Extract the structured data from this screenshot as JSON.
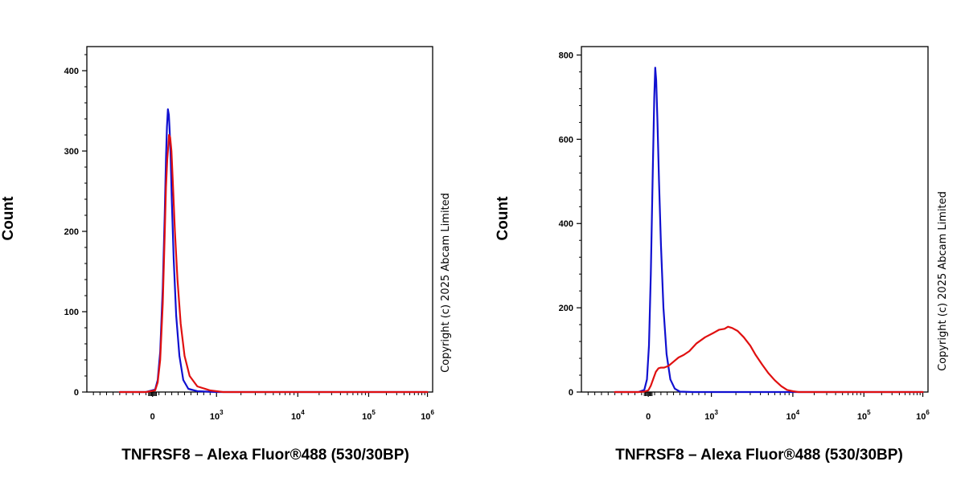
{
  "chart_data": [
    {
      "type": "line",
      "ylabel": "Count",
      "xlabel": "TNFRSF8 – Alexa Fluor®488 (530/30BP)",
      "watermark": "Copyright (c) 2025 Abcam Limited",
      "x_scale": "biexponential",
      "ylim": [
        0,
        430
      ],
      "y_ticks": [
        0,
        100,
        200,
        300,
        400
      ],
      "x_ticks": [
        {
          "value": 0,
          "base": "0",
          "exp": ""
        },
        {
          "value": 1000,
          "base": "10",
          "exp": "3"
        },
        {
          "value": 10000,
          "base": "10",
          "exp": "4"
        },
        {
          "value": 100000,
          "base": "10",
          "exp": "5"
        },
        {
          "value": 1000000,
          "base": "10",
          "exp": "6"
        }
      ],
      "series": [
        {
          "color": "#1010d0",
          "points": [
            [
              -500,
              0
            ],
            [
              -100,
              0
            ],
            [
              40,
              3
            ],
            [
              80,
              15
            ],
            [
              120,
              50
            ],
            [
              160,
              130
            ],
            [
              190,
              220
            ],
            [
              210,
              290
            ],
            [
              225,
              330
            ],
            [
              240,
              352
            ],
            [
              255,
              345
            ],
            [
              268,
              325
            ],
            [
              280,
              300
            ],
            [
              300,
              240
            ],
            [
              330,
              165
            ],
            [
              370,
              95
            ],
            [
              420,
              45
            ],
            [
              480,
              15
            ],
            [
              560,
              4
            ],
            [
              700,
              1
            ],
            [
              1000,
              0
            ],
            [
              10000,
              0
            ],
            [
              1000000,
              0
            ]
          ]
        },
        {
          "color": "#e01010",
          "points": [
            [
              -500,
              0
            ],
            [
              -100,
              0
            ],
            [
              40,
              2
            ],
            [
              80,
              12
            ],
            [
              120,
              40
            ],
            [
              160,
              110
            ],
            [
              190,
              195
            ],
            [
              210,
              255
            ],
            [
              230,
              290
            ],
            [
              245,
              305
            ],
            [
              258,
              320
            ],
            [
              275,
              317
            ],
            [
              295,
              300
            ],
            [
              320,
              255
            ],
            [
              350,
              200
            ],
            [
              390,
              140
            ],
            [
              440,
              85
            ],
            [
              500,
              45
            ],
            [
              580,
              20
            ],
            [
              700,
              7
            ],
            [
              900,
              2
            ],
            [
              1200,
              0
            ],
            [
              10000,
              0
            ],
            [
              1000000,
              0
            ]
          ]
        }
      ]
    },
    {
      "type": "line",
      "ylabel": "Count",
      "xlabel": "TNFRSF8 – Alexa Fluor®488 (530/30BP)",
      "watermark": "Copyright (c) 2025 Abcam Limited",
      "x_scale": "biexponential",
      "ylim": [
        0,
        820
      ],
      "y_ticks": [
        0,
        200,
        400,
        600,
        800
      ],
      "x_ticks": [
        {
          "value": 0,
          "base": "0",
          "exp": ""
        },
        {
          "value": 1000,
          "base": "10",
          "exp": "3"
        },
        {
          "value": 10000,
          "base": "10",
          "exp": "4"
        },
        {
          "value": 100000,
          "base": "10",
          "exp": "5"
        },
        {
          "value": 1000000,
          "base": "10",
          "exp": "6"
        }
      ],
      "series": [
        {
          "color": "#1010d0",
          "points": [
            [
              -500,
              0
            ],
            [
              -150,
              0
            ],
            [
              -60,
              5
            ],
            [
              -20,
              30
            ],
            [
              10,
              110
            ],
            [
              40,
              280
            ],
            [
              70,
              520
            ],
            [
              95,
              700
            ],
            [
              110,
              770
            ],
            [
              125,
              740
            ],
            [
              145,
              640
            ],
            [
              170,
              500
            ],
            [
              200,
              350
            ],
            [
              240,
              200
            ],
            [
              290,
              90
            ],
            [
              350,
              30
            ],
            [
              420,
              8
            ],
            [
              500,
              1
            ],
            [
              700,
              0
            ],
            [
              1000000,
              0
            ]
          ]
        },
        {
          "color": "#e01010",
          "points": [
            [
              -500,
              0
            ],
            [
              -150,
              0
            ],
            [
              -60,
              1
            ],
            [
              0,
              4
            ],
            [
              40,
              15
            ],
            [
              80,
              32
            ],
            [
              120,
              48
            ],
            [
              160,
              56
            ],
            [
              200,
              58
            ],
            [
              250,
              58
            ],
            [
              320,
              62
            ],
            [
              400,
              72
            ],
            [
              480,
              82
            ],
            [
              560,
              88
            ],
            [
              650,
              97
            ],
            [
              760,
              115
            ],
            [
              900,
              130
            ],
            [
              1050,
              140
            ],
            [
              1250,
              148
            ],
            [
              1450,
              150
            ],
            [
              1600,
              155
            ],
            [
              1800,
              152
            ],
            [
              2100,
              145
            ],
            [
              2500,
              130
            ],
            [
              3000,
              110
            ],
            [
              3500,
              88
            ],
            [
              4200,
              65
            ],
            [
              5000,
              45
            ],
            [
              6000,
              28
            ],
            [
              7200,
              14
            ],
            [
              8500,
              5
            ],
            [
              10000,
              2
            ],
            [
              12000,
              0
            ],
            [
              1000000,
              0
            ]
          ]
        }
      ]
    }
  ]
}
